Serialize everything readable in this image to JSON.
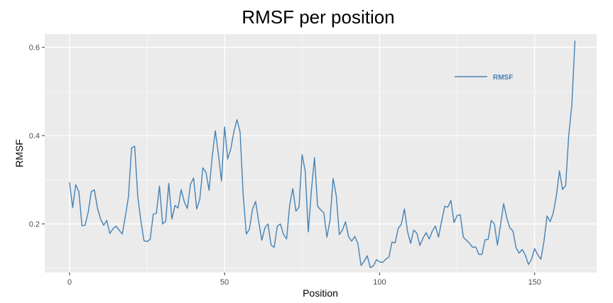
{
  "chart_data": {
    "type": "line",
    "title": "RMSF per position",
    "xlabel": "Position",
    "ylabel": "RMSF",
    "xlim": [
      -8,
      170
    ],
    "ylim": [
      0.09,
      0.63
    ],
    "x_ticks": [
      0,
      50,
      100,
      150
    ],
    "x_tick_labels": [
      "0",
      "50",
      "100",
      "150"
    ],
    "y_ticks": [
      0.2,
      0.4,
      0.6
    ],
    "y_tick_labels": [
      "0.2",
      "0.4",
      "0.6"
    ],
    "grid": true,
    "legend_position": "top-right",
    "colors": {
      "panel_background": "#EBEBEB",
      "grid_major": "#FFFFFF",
      "series_line": "#4682B4",
      "legend_text": "#4682B4"
    },
    "series": [
      {
        "name": "RMSF",
        "x": [
          0,
          1,
          2,
          3,
          4,
          5,
          6,
          7,
          8,
          9,
          10,
          11,
          12,
          13,
          14,
          15,
          16,
          17,
          18,
          19,
          20,
          21,
          22,
          23,
          24,
          25,
          26,
          27,
          28,
          29,
          30,
          31,
          32,
          33,
          34,
          35,
          36,
          37,
          38,
          39,
          40,
          41,
          42,
          43,
          44,
          45,
          46,
          47,
          48,
          49,
          50,
          51,
          52,
          53,
          54,
          55,
          56,
          57,
          58,
          59,
          60,
          61,
          62,
          63,
          64,
          65,
          66,
          67,
          68,
          69,
          70,
          71,
          72,
          73,
          74,
          75,
          76,
          77,
          78,
          79,
          80,
          81,
          82,
          83,
          84,
          85,
          86,
          87,
          88,
          89,
          90,
          91,
          92,
          93,
          94,
          95,
          96,
          97,
          98,
          99,
          100,
          101,
          102,
          103,
          104,
          105,
          106,
          107,
          108,
          109,
          110,
          111,
          112,
          113,
          114,
          115,
          116,
          117,
          118,
          119,
          120,
          121,
          122,
          123,
          124,
          125,
          126,
          127,
          128,
          129,
          130,
          131,
          132,
          133,
          134,
          135,
          136,
          137,
          138,
          139,
          140,
          141,
          142,
          143,
          144,
          145,
          146,
          147,
          148,
          149,
          150,
          151,
          152,
          153,
          154,
          155,
          156,
          157,
          158,
          159,
          160,
          161,
          162,
          163
        ],
        "y": [
          0.294,
          0.237,
          0.289,
          0.273,
          0.196,
          0.197,
          0.226,
          0.273,
          0.277,
          0.236,
          0.211,
          0.197,
          0.208,
          0.178,
          0.189,
          0.195,
          0.186,
          0.177,
          0.217,
          0.262,
          0.372,
          0.376,
          0.262,
          0.207,
          0.162,
          0.16,
          0.165,
          0.222,
          0.224,
          0.286,
          0.2,
          0.206,
          0.292,
          0.211,
          0.242,
          0.236,
          0.278,
          0.25,
          0.235,
          0.29,
          0.304,
          0.234,
          0.256,
          0.327,
          0.317,
          0.276,
          0.352,
          0.411,
          0.358,
          0.297,
          0.42,
          0.347,
          0.37,
          0.409,
          0.436,
          0.408,
          0.265,
          0.177,
          0.188,
          0.233,
          0.251,
          0.205,
          0.163,
          0.191,
          0.2,
          0.152,
          0.147,
          0.195,
          0.2,
          0.176,
          0.166,
          0.243,
          0.28,
          0.229,
          0.238,
          0.357,
          0.32,
          0.182,
          0.276,
          0.35,
          0.24,
          0.232,
          0.225,
          0.17,
          0.208,
          0.303,
          0.265,
          0.176,
          0.186,
          0.205,
          0.171,
          0.161,
          0.172,
          0.155,
          0.106,
          0.115,
          0.128,
          0.101,
          0.105,
          0.119,
          0.114,
          0.113,
          0.12,
          0.125,
          0.159,
          0.157,
          0.19,
          0.199,
          0.234,
          0.183,
          0.156,
          0.186,
          0.179,
          0.151,
          0.168,
          0.18,
          0.166,
          0.184,
          0.195,
          0.17,
          0.206,
          0.24,
          0.238,
          0.253,
          0.203,
          0.219,
          0.221,
          0.17,
          0.163,
          0.156,
          0.147,
          0.148,
          0.131,
          0.131,
          0.164,
          0.165,
          0.208,
          0.2,
          0.152,
          0.198,
          0.246,
          0.214,
          0.191,
          0.184,
          0.146,
          0.134,
          0.142,
          0.129,
          0.108,
          0.12,
          0.144,
          0.13,
          0.12,
          0.16,
          0.218,
          0.205,
          0.225,
          0.264,
          0.32,
          0.278,
          0.287,
          0.401,
          0.47,
          0.615
        ]
      }
    ]
  }
}
